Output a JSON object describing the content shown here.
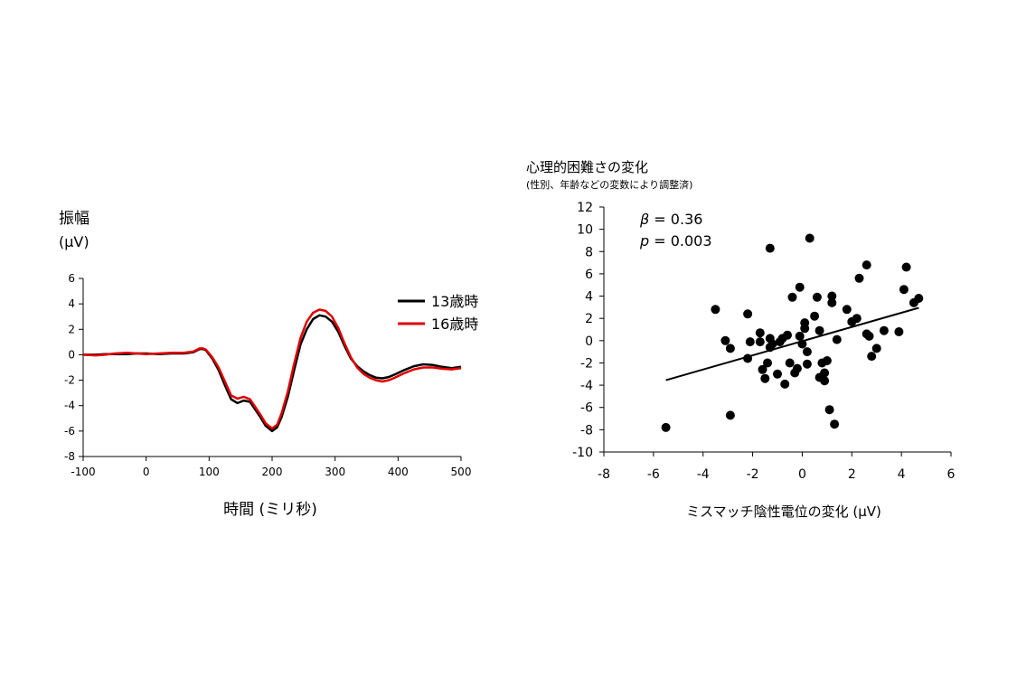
{
  "chart_data": [
    {
      "type": "line",
      "ylabel": "振幅",
      "yunit": "(μV)",
      "xlabel": "時間 (ミリ秒)",
      "xlim": [
        -100,
        500
      ],
      "ylim": [
        -8,
        6
      ],
      "xticks": [
        -100,
        0,
        100,
        200,
        300,
        400,
        500
      ],
      "yticks": [
        -8,
        -6,
        -4,
        -2,
        0,
        2,
        4,
        6
      ],
      "legend_position": "top-right",
      "series": [
        {
          "name": "13歳時",
          "color": "#000000",
          "x": [
            -100,
            -80,
            -65,
            -50,
            -30,
            -15,
            0,
            20,
            40,
            60,
            75,
            85,
            90,
            95,
            105,
            115,
            125,
            135,
            145,
            155,
            165,
            180,
            190,
            200,
            208,
            215,
            225,
            235,
            245,
            255,
            265,
            275,
            285,
            295,
            305,
            315,
            325,
            335,
            345,
            355,
            365,
            375,
            385,
            395,
            410,
            425,
            440,
            455,
            470,
            485,
            500
          ],
          "values": [
            0.0,
            0.0,
            0.05,
            0.05,
            0.05,
            0.1,
            0.1,
            0.05,
            0.1,
            0.1,
            0.2,
            0.45,
            0.45,
            0.35,
            -0.3,
            -1.2,
            -2.4,
            -3.5,
            -3.8,
            -3.6,
            -3.7,
            -4.8,
            -5.6,
            -6.0,
            -5.7,
            -4.9,
            -3.3,
            -1.2,
            0.8,
            2.0,
            2.8,
            3.1,
            3.0,
            2.6,
            1.8,
            0.7,
            -0.3,
            -0.9,
            -1.3,
            -1.6,
            -1.8,
            -1.85,
            -1.75,
            -1.55,
            -1.2,
            -0.9,
            -0.75,
            -0.8,
            -0.95,
            -1.05,
            -0.95
          ]
        },
        {
          "name": "16歳時",
          "color": "#e00000",
          "x": [
            -100,
            -80,
            -65,
            -50,
            -30,
            -15,
            0,
            20,
            40,
            60,
            75,
            85,
            90,
            95,
            105,
            115,
            125,
            135,
            145,
            155,
            165,
            180,
            190,
            200,
            208,
            215,
            225,
            235,
            245,
            255,
            265,
            275,
            285,
            295,
            305,
            315,
            325,
            335,
            345,
            355,
            365,
            375,
            385,
            395,
            410,
            425,
            440,
            455,
            470,
            485,
            500
          ],
          "values": [
            0.0,
            -0.05,
            0.0,
            0.1,
            0.15,
            0.1,
            0.05,
            0.1,
            0.15,
            0.15,
            0.25,
            0.5,
            0.5,
            0.4,
            -0.2,
            -1.0,
            -2.1,
            -3.2,
            -3.45,
            -3.3,
            -3.5,
            -4.6,
            -5.4,
            -5.8,
            -5.5,
            -4.6,
            -2.9,
            -0.7,
            1.3,
            2.6,
            3.3,
            3.55,
            3.45,
            3.0,
            2.1,
            0.9,
            -0.2,
            -1.0,
            -1.5,
            -1.8,
            -2.0,
            -2.1,
            -2.0,
            -1.8,
            -1.45,
            -1.15,
            -1.0,
            -1.0,
            -1.1,
            -1.15,
            -1.05
          ]
        }
      ]
    },
    {
      "type": "scatter",
      "title": "心理的困難さの変化",
      "subtitle": "(性別、年齢などの変数により調整済)",
      "xlabel": "ミスマッチ陰性電位の変化 (μV)",
      "xlim": [
        -8,
        6
      ],
      "ylim": [
        -10,
        12
      ],
      "xticks": [
        -8,
        -6,
        -4,
        -2,
        0,
        2,
        4,
        6
      ],
      "yticks": [
        -10,
        -8,
        -6,
        -4,
        -2,
        0,
        2,
        4,
        6,
        8,
        10,
        12
      ],
      "annotations": {
        "beta_symbol": "β",
        "beta_value": " = 0.36",
        "p_symbol": "p",
        "p_value": " = 0.003"
      },
      "regression": {
        "x1": -5.5,
        "y1": -3.55,
        "x2": 4.7,
        "y2": 2.95
      },
      "points": [
        [
          -5.5,
          -7.8
        ],
        [
          -3.5,
          2.8
        ],
        [
          -3.1,
          0.0
        ],
        [
          -2.9,
          -0.7
        ],
        [
          -2.9,
          -6.7
        ],
        [
          -2.2,
          2.4
        ],
        [
          -2.2,
          -1.6
        ],
        [
          -2.1,
          -0.1
        ],
        [
          -1.7,
          0.7
        ],
        [
          -1.7,
          -0.1
        ],
        [
          -1.6,
          -2.6
        ],
        [
          -1.5,
          -3.4
        ],
        [
          -1.4,
          -2.0
        ],
        [
          -1.3,
          8.3
        ],
        [
          -1.3,
          -0.6
        ],
        [
          -1.3,
          0.2
        ],
        [
          -1.2,
          -0.3
        ],
        [
          -1.0,
          -3.0
        ],
        [
          -0.9,
          -0.1
        ],
        [
          -0.8,
          0.2
        ],
        [
          -0.7,
          -3.9
        ],
        [
          -0.6,
          0.5
        ],
        [
          -0.5,
          -2.0
        ],
        [
          -0.4,
          3.9
        ],
        [
          -0.3,
          -2.9
        ],
        [
          -0.2,
          -2.5
        ],
        [
          -0.1,
          0.4
        ],
        [
          -0.1,
          4.8
        ],
        [
          0.0,
          -0.3
        ],
        [
          0.1,
          1.6
        ],
        [
          0.1,
          1.1
        ],
        [
          0.2,
          -2.1
        ],
        [
          0.2,
          -1.0
        ],
        [
          0.3,
          9.2
        ],
        [
          0.5,
          2.2
        ],
        [
          0.6,
          3.9
        ],
        [
          0.7,
          0.9
        ],
        [
          0.7,
          -3.3
        ],
        [
          0.8,
          -2.0
        ],
        [
          0.9,
          -3.6
        ],
        [
          0.9,
          -2.9
        ],
        [
          1.0,
          -1.8
        ],
        [
          1.1,
          -6.2
        ],
        [
          1.2,
          4.0
        ],
        [
          1.2,
          3.4
        ],
        [
          1.3,
          -7.5
        ],
        [
          1.4,
          0.1
        ],
        [
          1.8,
          2.8
        ],
        [
          2.0,
          1.7
        ],
        [
          2.2,
          2.0
        ],
        [
          2.3,
          5.6
        ],
        [
          2.6,
          6.8
        ],
        [
          2.7,
          0.4
        ],
        [
          2.8,
          -1.4
        ],
        [
          3.0,
          -0.7
        ],
        [
          3.3,
          0.9
        ],
        [
          3.9,
          0.8
        ],
        [
          4.1,
          4.6
        ],
        [
          4.2,
          6.6
        ],
        [
          4.5,
          3.4
        ],
        [
          4.7,
          3.8
        ],
        [
          2.6,
          0.6
        ]
      ]
    }
  ]
}
